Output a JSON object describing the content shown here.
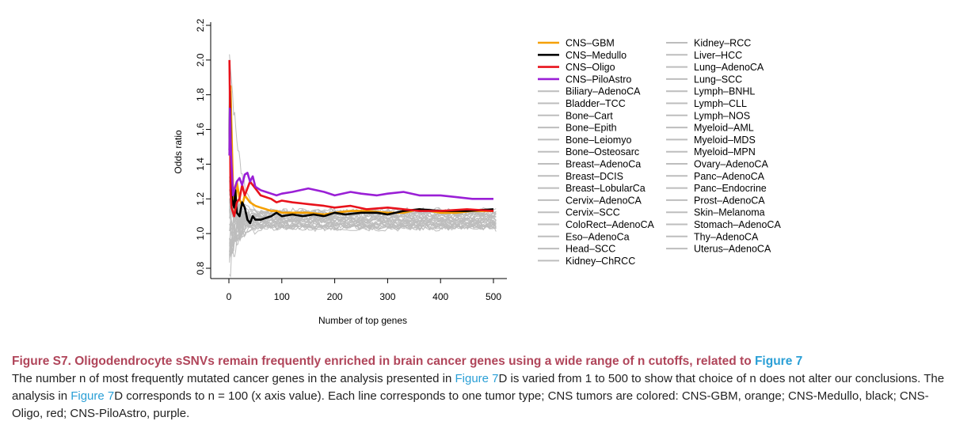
{
  "chart_data": {
    "type": "line",
    "xlabel": "Number of top genes",
    "ylabel": "Odds ratio",
    "xlim": [
      0,
      500
    ],
    "ylim": [
      0.8,
      2.2
    ],
    "xticks": [
      "0",
      "100",
      "200",
      "300",
      "400",
      "500"
    ],
    "yticks": [
      "0.8",
      "1.0",
      "1.2",
      "1.4",
      "1.6",
      "1.8",
      "2.0",
      "2.2"
    ],
    "legend_position": "right",
    "grey_color": "#bdbdbd",
    "series": [
      {
        "name": "CNS–GBM",
        "color": "#f5a000",
        "x": [
          1,
          3,
          5,
          8,
          12,
          15,
          20,
          25,
          30,
          40,
          50,
          60,
          70,
          80,
          90,
          100,
          120,
          150,
          180,
          200,
          230,
          260,
          300,
          330,
          360,
          400,
          430,
          460,
          500
        ],
        "y": [
          1.45,
          1.85,
          1.6,
          1.25,
          1.12,
          1.3,
          1.2,
          1.16,
          1.22,
          1.18,
          1.16,
          1.15,
          1.14,
          1.13,
          1.13,
          1.12,
          1.12,
          1.12,
          1.11,
          1.12,
          1.13,
          1.13,
          1.12,
          1.12,
          1.14,
          1.12,
          1.12,
          1.13,
          1.13
        ]
      },
      {
        "name": "CNS–Medullo",
        "color": "#000000",
        "x": [
          1,
          2,
          4,
          6,
          8,
          10,
          12,
          15,
          20,
          25,
          30,
          35,
          40,
          45,
          50,
          60,
          70,
          80,
          90,
          100,
          120,
          140,
          160,
          180,
          200,
          220,
          250,
          280,
          300,
          330,
          360,
          400,
          450,
          500
        ],
        "y": [
          1.48,
          1.82,
          1.4,
          1.2,
          1.17,
          1.15,
          1.25,
          1.12,
          1.1,
          1.18,
          1.15,
          1.08,
          1.06,
          1.1,
          1.08,
          1.08,
          1.09,
          1.1,
          1.12,
          1.1,
          1.11,
          1.1,
          1.11,
          1.1,
          1.12,
          1.11,
          1.12,
          1.12,
          1.11,
          1.13,
          1.14,
          1.13,
          1.13,
          1.14
        ]
      },
      {
        "name": "CNS–Oligo",
        "color": "#e8121b",
        "x": [
          1,
          2,
          3,
          5,
          8,
          10,
          15,
          20,
          25,
          30,
          40,
          50,
          60,
          70,
          80,
          90,
          100,
          120,
          150,
          180,
          200,
          230,
          260,
          300,
          330,
          360,
          400,
          450,
          500
        ],
        "y": [
          2.0,
          1.75,
          1.25,
          1.15,
          1.12,
          1.1,
          1.18,
          1.2,
          1.28,
          1.22,
          1.3,
          1.26,
          1.22,
          1.21,
          1.2,
          1.18,
          1.19,
          1.18,
          1.17,
          1.16,
          1.15,
          1.16,
          1.14,
          1.15,
          1.14,
          1.13,
          1.13,
          1.14,
          1.13
        ]
      },
      {
        "name": "CNS–PiloAstro",
        "color": "#9a1fd6",
        "x": [
          1,
          2,
          3,
          5,
          8,
          10,
          15,
          20,
          25,
          30,
          35,
          40,
          45,
          50,
          60,
          70,
          80,
          90,
          100,
          120,
          150,
          180,
          200,
          230,
          250,
          280,
          300,
          330,
          360,
          400,
          430,
          460,
          500
        ],
        "y": [
          1.45,
          1.72,
          1.55,
          1.4,
          1.22,
          1.25,
          1.3,
          1.32,
          1.28,
          1.34,
          1.35,
          1.3,
          1.33,
          1.27,
          1.25,
          1.24,
          1.23,
          1.22,
          1.23,
          1.24,
          1.26,
          1.24,
          1.22,
          1.24,
          1.23,
          1.22,
          1.23,
          1.24,
          1.22,
          1.22,
          1.21,
          1.2,
          1.2
        ]
      },
      {
        "name": "Biliary–AdenoCA"
      },
      {
        "name": "Bladder–TCC"
      },
      {
        "name": "Bone–Cart"
      },
      {
        "name": "Bone–Epith"
      },
      {
        "name": "Bone–Leiomyo"
      },
      {
        "name": "Bone–Osteosarc"
      },
      {
        "name": "Breast–AdenoCa"
      },
      {
        "name": "Breast–DCIS"
      },
      {
        "name": "Breast–LobularCa"
      },
      {
        "name": "Cervix–AdenoCA"
      },
      {
        "name": "Cervix–SCC"
      },
      {
        "name": "ColoRect–AdenoCA"
      },
      {
        "name": "Eso–AdenoCa"
      },
      {
        "name": "Head–SCC"
      },
      {
        "name": "Kidney–ChRCC"
      },
      {
        "name": "Kidney–RCC"
      },
      {
        "name": "Liver–HCC"
      },
      {
        "name": "Lung–AdenoCA"
      },
      {
        "name": "Lung–SCC"
      },
      {
        "name": "Lymph–BNHL"
      },
      {
        "name": "Lymph–CLL"
      },
      {
        "name": "Lymph–NOS"
      },
      {
        "name": "Myeloid–AML"
      },
      {
        "name": "Myeloid–MDS"
      },
      {
        "name": "Myeloid–MPN"
      },
      {
        "name": "Ovary–AdenoCA"
      },
      {
        "name": "Panc–AdenoCA"
      },
      {
        "name": "Panc–Endocrine"
      },
      {
        "name": "Prost–AdenoCA"
      },
      {
        "name": "Skin–Melanoma"
      },
      {
        "name": "Stomach–AdenoCA"
      },
      {
        "name": "Thy–AdenoCA"
      },
      {
        "name": "Uterus–AdenoCA"
      }
    ]
  },
  "caption": {
    "title_main": "Figure S7.  Oligodendrocyte sSNVs remain frequently enriched in brain cancer genes using a wide range of n cutoffs, related to ",
    "title_link": "Figure 7",
    "body_1": "The number n of most frequently mutated cancer genes in the analysis presented in ",
    "link_1": "Figure 7",
    "body_2": "D is varied from 1 to 500 to show that choice of n does not alter our conclusions. The analysis in ",
    "link_2": "Figure 7",
    "body_3": "D corresponds to n = 100 (x axis value). Each line corresponds to one tumor type; CNS tumors are colored: CNS-GBM, orange; CNS-Medullo, black; CNS-Oligo, red; CNS-PiloAstro, purple."
  }
}
